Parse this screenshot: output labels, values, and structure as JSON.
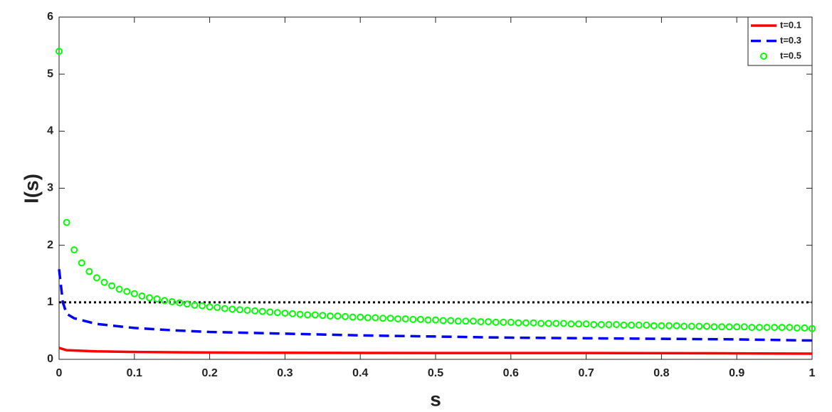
{
  "chart_data": {
    "type": "line",
    "x_label": "s",
    "y_label": "I(s)",
    "xlim": [
      0,
      1
    ],
    "ylim": [
      0,
      6
    ],
    "xticks": [
      0,
      0.1,
      0.2,
      0.3,
      0.4,
      0.5,
      0.6,
      0.7,
      0.8,
      0.9,
      1
    ],
    "yticks": [
      0,
      1,
      2,
      3,
      4,
      5,
      6
    ],
    "legend": "top-right",
    "reference_line": {
      "y": 1,
      "color": "#000000"
    },
    "series": [
      {
        "name": "t=0.1",
        "color": "#ff0000",
        "style": "solid",
        "x": [
          0,
          0.01,
          0.05,
          0.1,
          0.2,
          0.3,
          0.5,
          0.7,
          0.9,
          1
        ],
        "values": [
          0.2,
          0.16,
          0.14,
          0.13,
          0.12,
          0.115,
          0.11,
          0.11,
          0.105,
          0.1
        ]
      },
      {
        "name": "t=0.3",
        "color": "#0000ff",
        "style": "dashed",
        "x": [
          0,
          0.005,
          0.01,
          0.02,
          0.05,
          0.1,
          0.15,
          0.2,
          0.3,
          0.4,
          0.5,
          0.6,
          0.7,
          0.8,
          0.9,
          1
        ],
        "values": [
          1.58,
          1.0,
          0.8,
          0.72,
          0.62,
          0.55,
          0.51,
          0.48,
          0.45,
          0.42,
          0.4,
          0.38,
          0.37,
          0.36,
          0.35,
          0.33
        ]
      },
      {
        "name": "t=0.5",
        "color": "#00ff00",
        "style": "markers",
        "x": [
          0,
          0.01,
          0.02,
          0.03,
          0.04,
          0.05,
          0.06,
          0.07,
          0.08,
          0.09,
          0.1,
          0.11,
          0.12,
          0.13,
          0.14,
          0.15,
          0.16,
          0.17,
          0.18,
          0.19,
          0.2,
          0.21,
          0.22,
          0.23,
          0.24,
          0.25,
          0.26,
          0.27,
          0.28,
          0.29,
          0.3,
          0.31,
          0.32,
          0.33,
          0.34,
          0.35,
          0.36,
          0.37,
          0.38,
          0.39,
          0.4,
          0.41,
          0.42,
          0.43,
          0.44,
          0.45,
          0.46,
          0.47,
          0.48,
          0.49,
          0.5,
          0.51,
          0.52,
          0.53,
          0.54,
          0.55,
          0.56,
          0.57,
          0.58,
          0.59,
          0.6,
          0.61,
          0.62,
          0.63,
          0.64,
          0.65,
          0.66,
          0.67,
          0.68,
          0.69,
          0.7,
          0.71,
          0.72,
          0.73,
          0.74,
          0.75,
          0.76,
          0.77,
          0.78,
          0.79,
          0.8,
          0.81,
          0.82,
          0.83,
          0.84,
          0.85,
          0.86,
          0.87,
          0.88,
          0.89,
          0.9,
          0.91,
          0.92,
          0.93,
          0.94,
          0.95,
          0.96,
          0.97,
          0.98,
          0.99,
          1
        ],
        "values": [
          5.4,
          2.4,
          1.92,
          1.69,
          1.54,
          1.43,
          1.35,
          1.29,
          1.23,
          1.19,
          1.15,
          1.11,
          1.08,
          1.06,
          1.03,
          1.01,
          0.99,
          0.97,
          0.95,
          0.94,
          0.92,
          0.91,
          0.89,
          0.88,
          0.87,
          0.86,
          0.85,
          0.84,
          0.83,
          0.82,
          0.81,
          0.8,
          0.79,
          0.78,
          0.78,
          0.77,
          0.76,
          0.76,
          0.75,
          0.74,
          0.74,
          0.73,
          0.73,
          0.72,
          0.72,
          0.71,
          0.71,
          0.7,
          0.7,
          0.69,
          0.69,
          0.68,
          0.68,
          0.67,
          0.67,
          0.67,
          0.66,
          0.66,
          0.65,
          0.65,
          0.65,
          0.64,
          0.64,
          0.64,
          0.63,
          0.63,
          0.63,
          0.63,
          0.62,
          0.62,
          0.62,
          0.61,
          0.61,
          0.61,
          0.61,
          0.6,
          0.6,
          0.6,
          0.6,
          0.59,
          0.59,
          0.59,
          0.59,
          0.58,
          0.58,
          0.58,
          0.58,
          0.57,
          0.57,
          0.57,
          0.57,
          0.57,
          0.56,
          0.56,
          0.56,
          0.56,
          0.56,
          0.56,
          0.55,
          0.55,
          0.54
        ]
      }
    ]
  }
}
